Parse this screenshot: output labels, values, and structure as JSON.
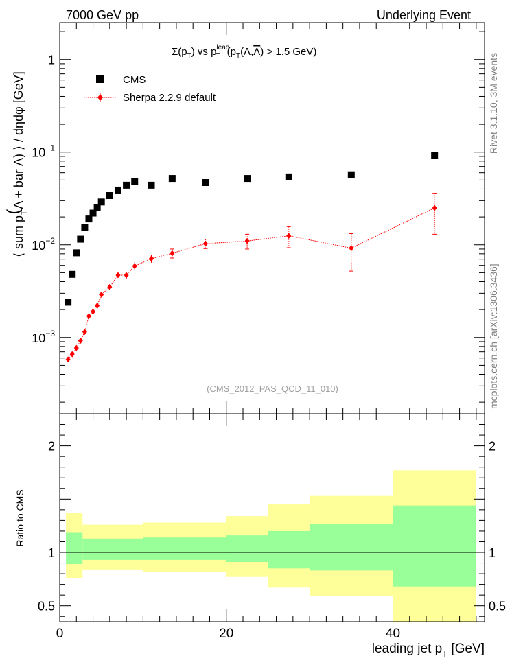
{
  "header": {
    "left": "7000 GeV pp",
    "right": "Underlying Event"
  },
  "side_labels": {
    "rivet": "Rivet 3.1.10,  3M events",
    "mcplots": "mcplots.cern.ch [arXiv:1306.3436]"
  },
  "chart_data": {
    "type": "scatter",
    "title": "Σ(pT) vs pT^lead (pT(Λ,Λ̄) > 1.5 GeV)",
    "title_parts": {
      "sigma": "Σ(p",
      "sub_t": "T",
      "vs": ") vs p",
      "sup_lead": "lead",
      "cut_open": " (p",
      "cut_mid": "(Λ,",
      "lambda_bar": "Λ",
      "cut_close": ") > 1.5 GeV)"
    },
    "xlabel": "leading jet p",
    "xlabel_sub": "T",
    "xlabel_unit": " [GeV]",
    "ylabel_parts": {
      "a": "⟨ sum p",
      "sub": "T",
      "b": "Λ + bar Λ) ⟩ / dηdφ [GeV]"
    },
    "watermark": "(CMS_2012_PAS_QCD_11_010)",
    "xlim": [
      0,
      51
    ],
    "ylim": [
      0.00015,
      2.5
    ],
    "yscale": "log",
    "x_ticks": [
      "0",
      "20",
      "40"
    ],
    "y_ticks": [
      {
        "base": "10",
        "exp": "−3"
      },
      {
        "base": "10",
        "exp": "−2"
      },
      {
        "base": "10",
        "exp": "−1"
      },
      {
        "base": "1",
        "exp": ""
      }
    ],
    "legend": {
      "position": "top-left",
      "cms": "CMS",
      "mc": "Sherpa 2.2.9 default"
    },
    "series": [
      {
        "name": "CMS",
        "color": "#000000",
        "marker": "square",
        "x": [
          1.0,
          1.5,
          2.0,
          2.5,
          3.0,
          3.5,
          4.0,
          4.5,
          5.0,
          6.0,
          7.0,
          8.0,
          9.0,
          11.0,
          13.5,
          17.5,
          22.5,
          27.5,
          35.0,
          45.0
        ],
        "y": [
          0.0024,
          0.0048,
          0.0082,
          0.0115,
          0.0155,
          0.019,
          0.022,
          0.025,
          0.029,
          0.034,
          0.039,
          0.044,
          0.048,
          0.044,
          0.052,
          0.047,
          0.052,
          0.054,
          0.057,
          0.092
        ]
      },
      {
        "name": "Sherpa 2.2.9 default",
        "color": "#ff0000",
        "marker": "diamond",
        "x": [
          1.0,
          1.5,
          2.0,
          2.5,
          3.0,
          3.5,
          4.0,
          4.5,
          5.0,
          6.0,
          7.0,
          8.0,
          9.0,
          11.0,
          13.5,
          17.5,
          22.5,
          27.5,
          35.0,
          45.0
        ],
        "y": [
          0.00058,
          0.00066,
          0.00077,
          0.00092,
          0.00115,
          0.0017,
          0.0019,
          0.0022,
          0.0029,
          0.0035,
          0.0047,
          0.0047,
          0.0059,
          0.0071,
          0.0081,
          0.0103,
          0.011,
          0.0125,
          0.0092,
          0.025
        ],
        "err_lo": [
          3e-05,
          3e-05,
          3e-05,
          4e-05,
          5e-05,
          0.0001,
          0.0001,
          0.00015,
          0.0002,
          0.00025,
          0.0003,
          0.0004,
          0.0006,
          0.0007,
          0.0009,
          0.0012,
          0.002,
          0.0032,
          0.004,
          0.012
        ],
        "err_hi": [
          3e-05,
          3e-05,
          3e-05,
          4e-05,
          5e-05,
          0.0001,
          0.0001,
          0.00015,
          0.0002,
          0.00025,
          0.0003,
          0.0004,
          0.0006,
          0.0007,
          0.0009,
          0.0012,
          0.002,
          0.0032,
          0.004,
          0.011
        ]
      }
    ],
    "ratio": {
      "ylabel": "Ratio to CMS",
      "ylim": [
        0.35,
        2.3
      ],
      "y_ticks": [
        "0.5",
        "1",
        "2"
      ],
      "reference": 1,
      "colors": {
        "inner": "#99ff99",
        "outer": "#ffff99"
      },
      "bands": [
        {
          "x0": 0.75,
          "x1": 2.75,
          "inner_lo": 0.89,
          "inner_hi": 1.19,
          "outer_lo": 0.76,
          "outer_hi": 1.37
        },
        {
          "x0": 2.75,
          "x1": 10.0,
          "inner_lo": 0.93,
          "inner_hi": 1.13,
          "outer_lo": 0.84,
          "outer_hi": 1.26
        },
        {
          "x0": 10.0,
          "x1": 20.0,
          "inner_lo": 0.93,
          "inner_hi": 1.14,
          "outer_lo": 0.82,
          "outer_hi": 1.28
        },
        {
          "x0": 20.0,
          "x1": 25.0,
          "inner_lo": 0.91,
          "inner_hi": 1.16,
          "outer_lo": 0.77,
          "outer_hi": 1.34
        },
        {
          "x0": 25.0,
          "x1": 30.0,
          "inner_lo": 0.85,
          "inner_hi": 1.2,
          "outer_lo": 0.67,
          "outer_hi": 1.45
        },
        {
          "x0": 30.0,
          "x1": 40.0,
          "inner_lo": 0.83,
          "inner_hi": 1.27,
          "outer_lo": 0.59,
          "outer_hi": 1.53
        },
        {
          "x0": 40.0,
          "x1": 50.0,
          "inner_lo": 0.68,
          "inner_hi": 1.44,
          "outer_lo": 0.35,
          "outer_hi": 1.77
        }
      ]
    }
  }
}
